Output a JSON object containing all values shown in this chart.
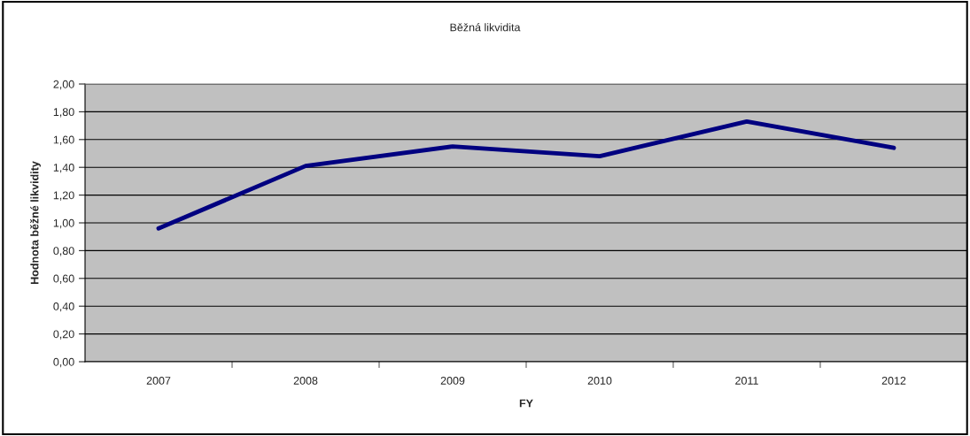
{
  "chart_data": {
    "type": "line",
    "title": "Běžná likvidita",
    "xlabel": "FY",
    "ylabel": "Hodnota běžné likvidity",
    "categories": [
      "2007",
      "2008",
      "2009",
      "2010",
      "2011",
      "2012"
    ],
    "series": [
      {
        "color": "#000080",
        "values": [
          0.96,
          1.41,
          1.55,
          1.48,
          1.73,
          1.54
        ]
      }
    ],
    "ylim": [
      0,
      2
    ],
    "yticks": [
      {
        "value": 0,
        "label": "0,00"
      },
      {
        "value": 0.2,
        "label": "0,20"
      },
      {
        "value": 0.4,
        "label": "0,40"
      },
      {
        "value": 0.6,
        "label": "0,60"
      },
      {
        "value": 0.8,
        "label": "0,80"
      },
      {
        "value": 1.0,
        "label": "1,00"
      },
      {
        "value": 1.2,
        "label": "1,20"
      },
      {
        "value": 1.4,
        "label": "1,40"
      },
      {
        "value": 1.6,
        "label": "1,60"
      },
      {
        "value": 1.8,
        "label": "1,80"
      },
      {
        "value": 2.0,
        "label": "2,00"
      }
    ],
    "grid": "y",
    "marker": "none",
    "line_style": "solid"
  }
}
